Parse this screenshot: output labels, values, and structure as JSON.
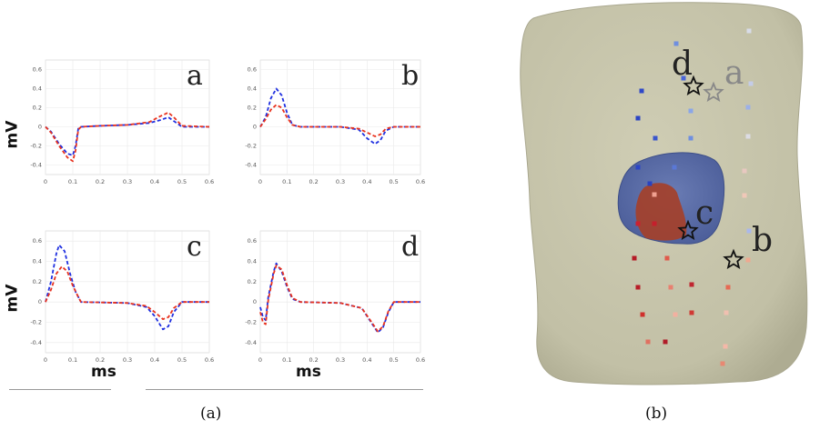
{
  "figure": {
    "caption_a": "(a)",
    "caption_b": "(b)",
    "ylabel": "mV",
    "xlabel": "ms"
  },
  "chart_data": {
    "type": "line",
    "x_ticks": [
      0,
      0.1,
      0.2,
      0.3,
      0.4,
      0.5,
      0.6
    ],
    "y_ticks": [
      0.6,
      0.4,
      0.2,
      0,
      -0.2,
      -0.4
    ],
    "xlim": [
      0,
      0.6
    ],
    "ylim": [
      -0.5,
      0.7
    ],
    "grid": true,
    "series_colors": {
      "blue": "#1f2fe0",
      "red": "#e8321e"
    },
    "panels": [
      {
        "label": "a",
        "blue": [
          [
            0,
            0
          ],
          [
            0.02,
            -0.05
          ],
          [
            0.05,
            -0.18
          ],
          [
            0.08,
            -0.28
          ],
          [
            0.1,
            -0.3
          ],
          [
            0.11,
            -0.2
          ],
          [
            0.12,
            -0.02
          ],
          [
            0.13,
            0
          ],
          [
            0.2,
            0.01
          ],
          [
            0.3,
            0.02
          ],
          [
            0.38,
            0.04
          ],
          [
            0.42,
            0.07
          ],
          [
            0.45,
            0.1
          ],
          [
            0.47,
            0.06
          ],
          [
            0.5,
            0
          ],
          [
            0.6,
            0
          ]
        ],
        "red": [
          [
            0,
            0
          ],
          [
            0.02,
            -0.06
          ],
          [
            0.05,
            -0.2
          ],
          [
            0.08,
            -0.32
          ],
          [
            0.1,
            -0.36
          ],
          [
            0.11,
            -0.25
          ],
          [
            0.12,
            -0.03
          ],
          [
            0.13,
            0
          ],
          [
            0.2,
            0.01
          ],
          [
            0.3,
            0.02
          ],
          [
            0.38,
            0.05
          ],
          [
            0.42,
            0.11
          ],
          [
            0.45,
            0.15
          ],
          [
            0.47,
            0.1
          ],
          [
            0.5,
            0.01
          ],
          [
            0.6,
            0
          ]
        ]
      },
      {
        "label": "b",
        "blue": [
          [
            0,
            0
          ],
          [
            0.02,
            0.1
          ],
          [
            0.04,
            0.3
          ],
          [
            0.06,
            0.4
          ],
          [
            0.08,
            0.33
          ],
          [
            0.1,
            0.15
          ],
          [
            0.12,
            0.02
          ],
          [
            0.15,
            0
          ],
          [
            0.3,
            0
          ],
          [
            0.37,
            -0.03
          ],
          [
            0.4,
            -0.12
          ],
          [
            0.43,
            -0.18
          ],
          [
            0.45,
            -0.14
          ],
          [
            0.47,
            -0.04
          ],
          [
            0.5,
            0
          ],
          [
            0.6,
            0
          ]
        ],
        "red": [
          [
            0,
            0
          ],
          [
            0.02,
            0.08
          ],
          [
            0.04,
            0.18
          ],
          [
            0.06,
            0.23
          ],
          [
            0.08,
            0.2
          ],
          [
            0.1,
            0.1
          ],
          [
            0.12,
            0.02
          ],
          [
            0.15,
            0
          ],
          [
            0.3,
            0
          ],
          [
            0.37,
            -0.02
          ],
          [
            0.4,
            -0.06
          ],
          [
            0.43,
            -0.1
          ],
          [
            0.45,
            -0.08
          ],
          [
            0.47,
            -0.02
          ],
          [
            0.5,
            0
          ],
          [
            0.6,
            0
          ]
        ]
      },
      {
        "label": "c",
        "blue": [
          [
            0,
            0
          ],
          [
            0.02,
            0.2
          ],
          [
            0.04,
            0.48
          ],
          [
            0.05,
            0.56
          ],
          [
            0.07,
            0.5
          ],
          [
            0.09,
            0.28
          ],
          [
            0.11,
            0.1
          ],
          [
            0.13,
            0
          ],
          [
            0.3,
            -0.01
          ],
          [
            0.37,
            -0.05
          ],
          [
            0.4,
            -0.14
          ],
          [
            0.43,
            -0.27
          ],
          [
            0.45,
            -0.24
          ],
          [
            0.47,
            -0.1
          ],
          [
            0.5,
            0
          ],
          [
            0.6,
            0
          ]
        ],
        "red": [
          [
            0,
            0
          ],
          [
            0.02,
            0.12
          ],
          [
            0.04,
            0.28
          ],
          [
            0.06,
            0.35
          ],
          [
            0.08,
            0.3
          ],
          [
            0.1,
            0.16
          ],
          [
            0.12,
            0.05
          ],
          [
            0.13,
            0
          ],
          [
            0.3,
            -0.01
          ],
          [
            0.37,
            -0.04
          ],
          [
            0.4,
            -0.1
          ],
          [
            0.43,
            -0.17
          ],
          [
            0.45,
            -0.15
          ],
          [
            0.47,
            -0.06
          ],
          [
            0.5,
            0
          ],
          [
            0.6,
            0
          ]
        ]
      },
      {
        "label": "d",
        "blue": [
          [
            0,
            -0.05
          ],
          [
            0.01,
            -0.15
          ],
          [
            0.02,
            -0.18
          ],
          [
            0.03,
            0.05
          ],
          [
            0.05,
            0.3
          ],
          [
            0.06,
            0.38
          ],
          [
            0.08,
            0.3
          ],
          [
            0.1,
            0.15
          ],
          [
            0.12,
            0.03
          ],
          [
            0.15,
            0
          ],
          [
            0.3,
            -0.01
          ],
          [
            0.38,
            -0.06
          ],
          [
            0.42,
            -0.22
          ],
          [
            0.44,
            -0.3
          ],
          [
            0.46,
            -0.25
          ],
          [
            0.48,
            -0.1
          ],
          [
            0.5,
            0
          ],
          [
            0.6,
            0
          ]
        ],
        "red": [
          [
            0,
            -0.1
          ],
          [
            0.01,
            -0.2
          ],
          [
            0.02,
            -0.22
          ],
          [
            0.03,
            0.02
          ],
          [
            0.05,
            0.28
          ],
          [
            0.06,
            0.36
          ],
          [
            0.08,
            0.32
          ],
          [
            0.1,
            0.17
          ],
          [
            0.12,
            0.04
          ],
          [
            0.15,
            0
          ],
          [
            0.3,
            -0.01
          ],
          [
            0.38,
            -0.06
          ],
          [
            0.42,
            -0.21
          ],
          [
            0.44,
            -0.29
          ],
          [
            0.46,
            -0.24
          ],
          [
            0.48,
            -0.09
          ],
          [
            0.5,
            0
          ],
          [
            0.6,
            0
          ]
        ]
      }
    ]
  },
  "torso": {
    "labels": [
      "a",
      "b",
      "c",
      "d"
    ],
    "colors": {
      "skin": "#c7c5ac",
      "heart_blue": "#5a6ea8",
      "heart_red": "#a4402a"
    },
    "electrodes": [
      {
        "color": "#6f8fe0"
      },
      {
        "color": "#4a66d8"
      },
      {
        "color": "#2f48c8"
      },
      {
        "color": "#8aa6e8"
      },
      {
        "color": "#2b44c4"
      },
      {
        "color": "#3a56cc"
      },
      {
        "color": "#6f8fe0"
      },
      {
        "color": "#2c46c6"
      },
      {
        "color": "#5a78d6"
      },
      {
        "color": "#2a42c0"
      },
      {
        "color": "#cc2030"
      },
      {
        "color": "#c51f2c"
      },
      {
        "color": "#f0a090"
      },
      {
        "color": "#b51a26"
      },
      {
        "color": "#e05a4a"
      },
      {
        "color": "#b81d28"
      },
      {
        "color": "#e88070"
      },
      {
        "color": "#d0302c"
      },
      {
        "color": "#f2b0a0"
      },
      {
        "color": "#e07060"
      },
      {
        "color": "#b01c28"
      },
      {
        "color": "#d03a34"
      },
      {
        "color": "#f0c0b0"
      },
      {
        "color": "#e66a54"
      },
      {
        "color": "#c02630"
      },
      {
        "color": "#f4b8a8"
      },
      {
        "color": "#e88872"
      },
      {
        "color": "#f0a890"
      },
      {
        "color": "#dcdce4"
      },
      {
        "color": "#c4cce8"
      },
      {
        "color": "#d8dce8"
      },
      {
        "color": "#9cb0e8"
      },
      {
        "color": "#e8c8c0"
      },
      {
        "color": "#f0c8b8"
      },
      {
        "color": "#aab8ec"
      }
    ]
  }
}
